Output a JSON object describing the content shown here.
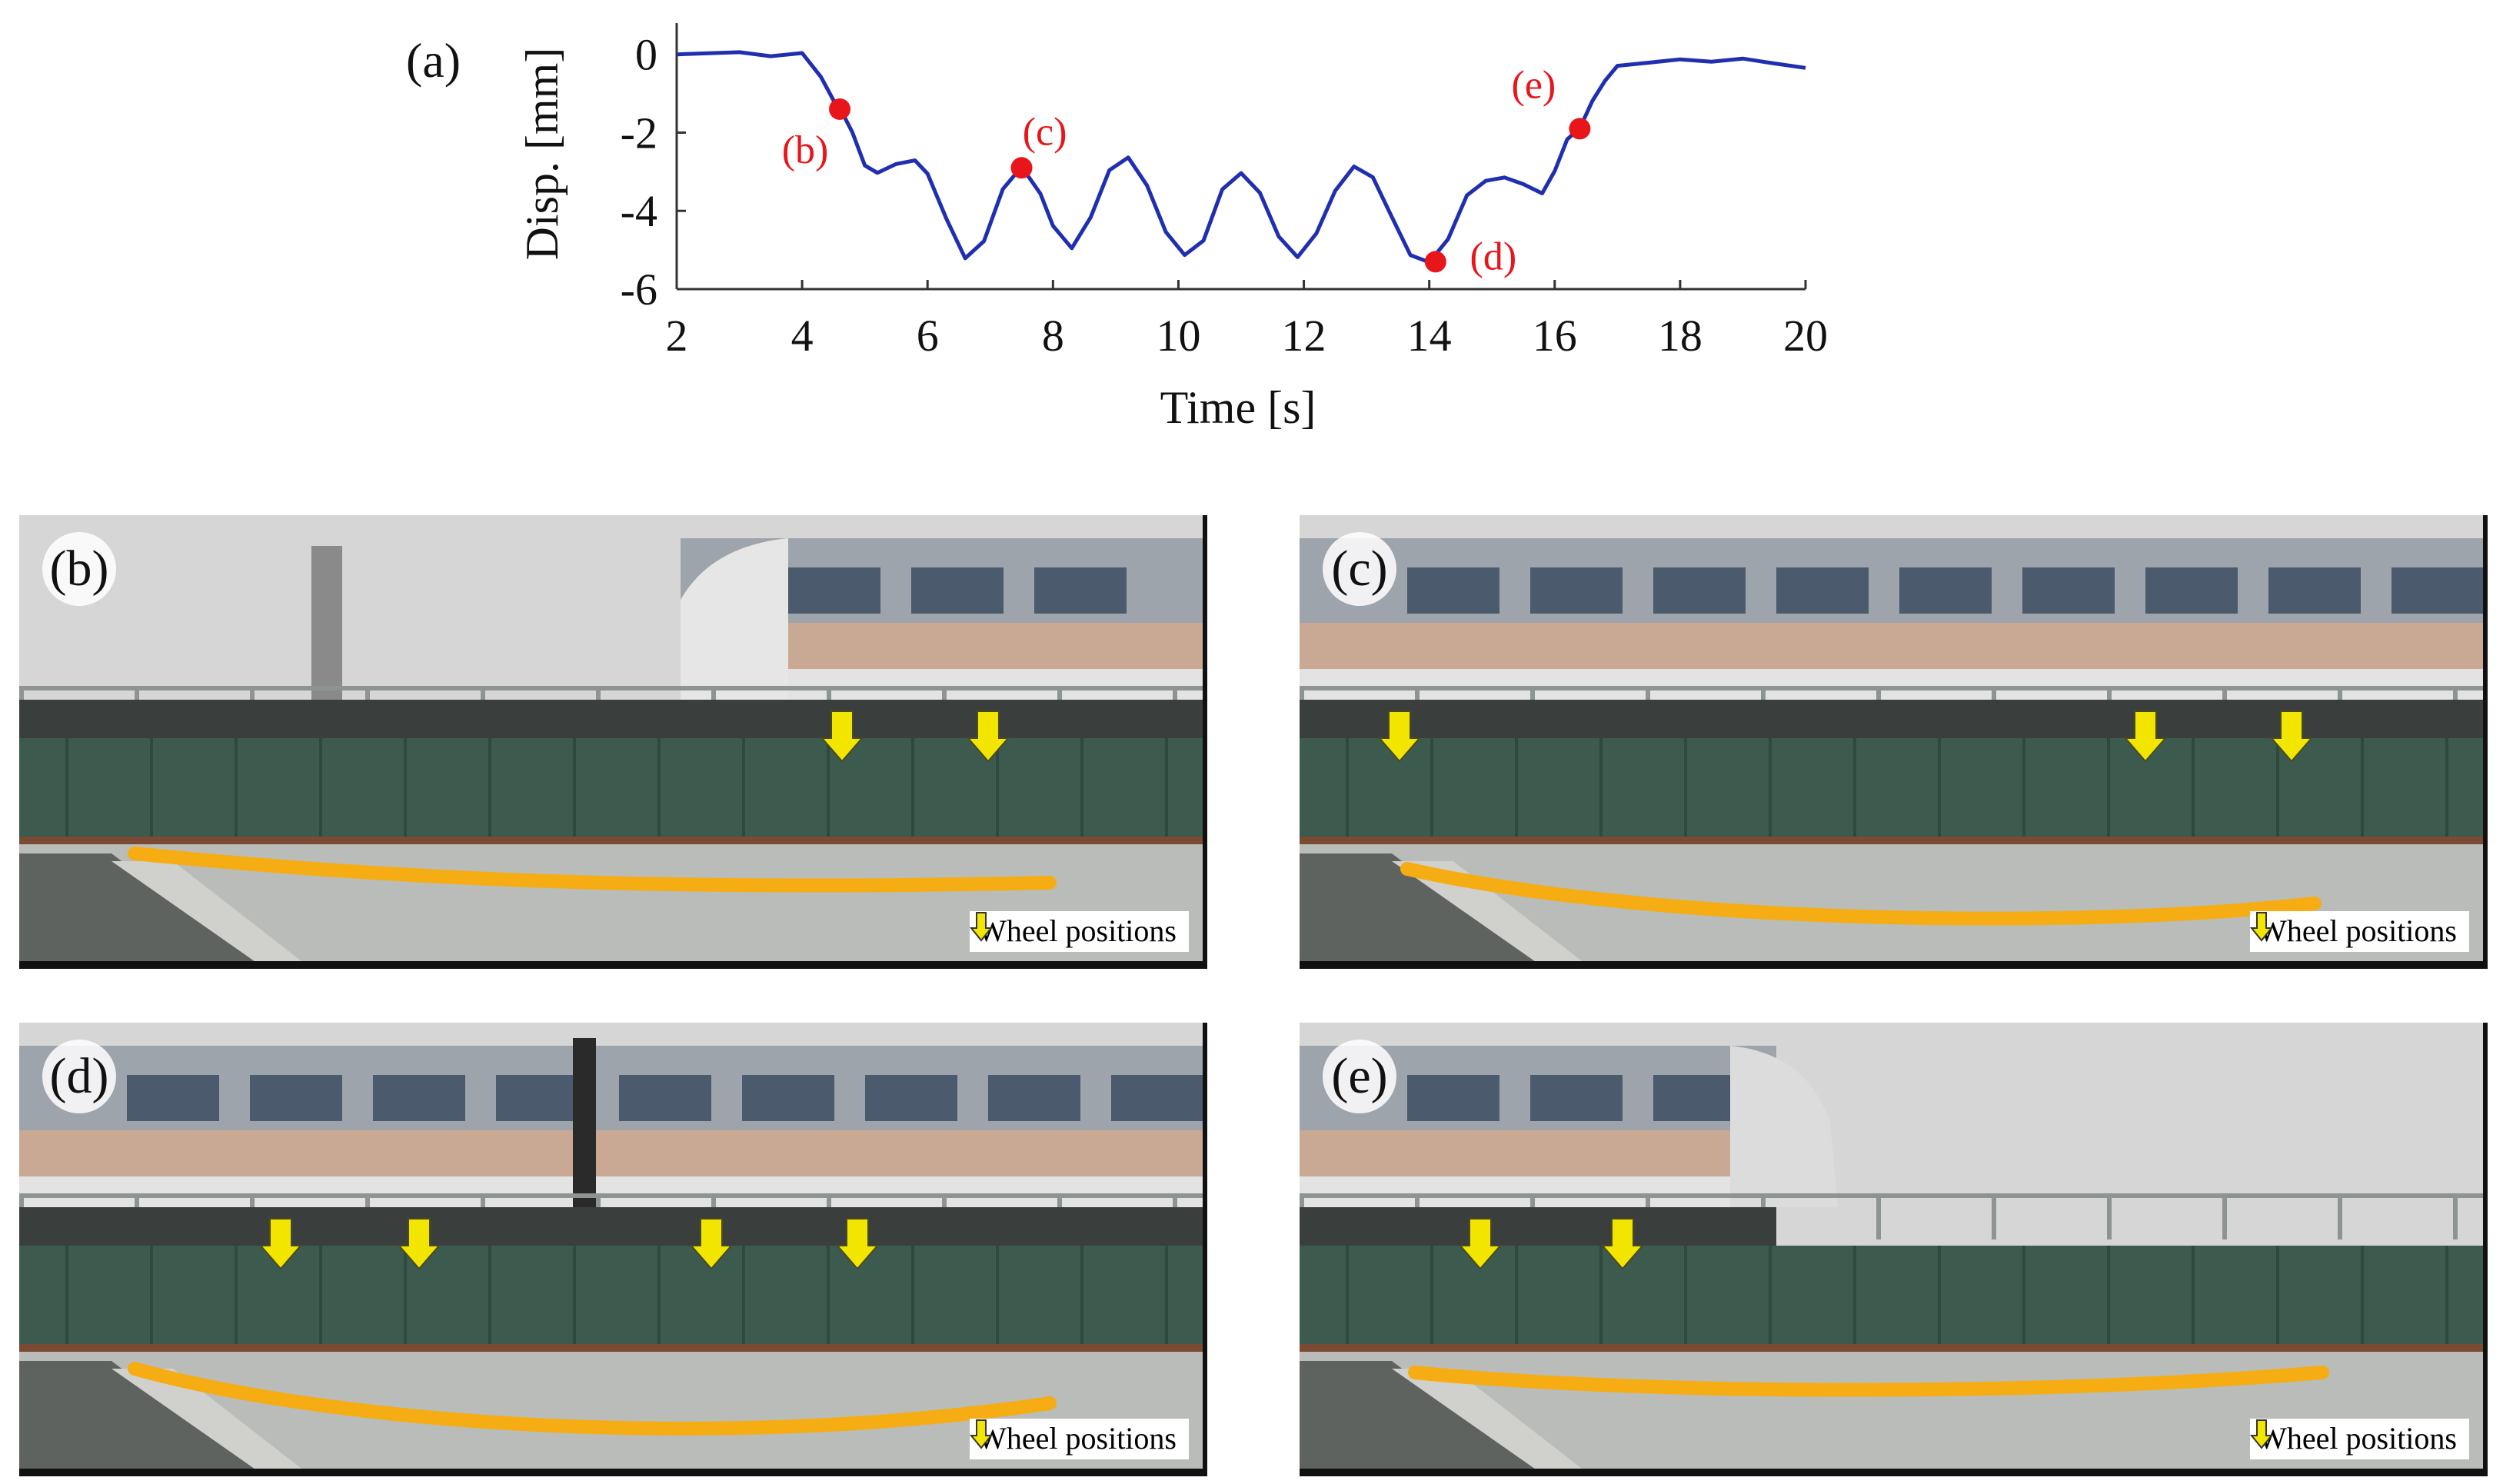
{
  "chart_data": {
    "type": "line",
    "panel_label": "(a)",
    "xlabel": "Time [s]",
    "ylabel": "Disp. [mm]",
    "xlim": [
      2,
      20
    ],
    "ylim": [
      -6,
      0.8
    ],
    "xticks": [
      2,
      4,
      6,
      8,
      10,
      12,
      14,
      16,
      18,
      20
    ],
    "yticks": [
      0,
      -2,
      -4,
      -6
    ],
    "grid": false,
    "series": [
      {
        "color": "#1f2fb0",
        "x": [
          2.0,
          3.0,
          3.5,
          4.0,
          4.3,
          4.5,
          4.6,
          4.8,
          5.0,
          5.2,
          5.5,
          5.8,
          6.0,
          6.3,
          6.6,
          6.9,
          7.2,
          7.5,
          7.8,
          8.0,
          8.3,
          8.6,
          8.9,
          9.2,
          9.5,
          9.8,
          10.1,
          10.4,
          10.7,
          11.0,
          11.3,
          11.6,
          11.9,
          12.2,
          12.5,
          12.8,
          13.1,
          13.4,
          13.7,
          14.0,
          14.3,
          14.6,
          14.9,
          15.2,
          15.5,
          15.8,
          16.0,
          16.2,
          16.4,
          16.6,
          16.8,
          17.0,
          17.5,
          18.0,
          18.5,
          19.0,
          19.5,
          20.0
        ],
        "y": [
          0.0,
          0.0,
          -0.05,
          0.0,
          -0.6,
          -1.2,
          -1.4,
          -2.0,
          -2.8,
          -3.0,
          -2.8,
          -2.7,
          -3.0,
          -4.2,
          -5.2,
          -4.8,
          -3.5,
          -2.9,
          -3.6,
          -4.4,
          -5.0,
          -4.2,
          -3.0,
          -2.6,
          -3.3,
          -4.5,
          -5.1,
          -4.7,
          -3.4,
          -3.0,
          -3.6,
          -4.7,
          -5.2,
          -4.6,
          -3.5,
          -2.9,
          -3.2,
          -4.2,
          -5.1,
          -5.3,
          -4.7,
          -3.6,
          -3.2,
          -3.1,
          -3.3,
          -3.6,
          -3.0,
          -2.2,
          -1.9,
          -1.2,
          -0.7,
          -0.3,
          -0.2,
          -0.1,
          -0.15,
          -0.1,
          -0.2,
          -0.3
        ]
      }
    ],
    "markers": [
      {
        "label": "(b)",
        "x": 4.6,
        "y": -1.4,
        "color": "#e8151b"
      },
      {
        "label": "(c)",
        "x": 7.5,
        "y": -2.9,
        "color": "#e8151b"
      },
      {
        "label": "(d)",
        "x": 14.1,
        "y": -5.3,
        "color": "#e8151b"
      },
      {
        "label": "(e)",
        "x": 16.4,
        "y": -1.9,
        "color": "#e8151b"
      }
    ]
  },
  "panels": [
    {
      "label": "(b)",
      "legend": "Wheel positions",
      "wheel_count": 2
    },
    {
      "label": "(c)",
      "legend": "Wheel positions",
      "wheel_count": 3
    },
    {
      "label": "(d)",
      "legend": "Wheel positions",
      "wheel_count": 4
    },
    {
      "label": "(e)",
      "legend": "Wheel positions",
      "wheel_count": 2
    }
  ],
  "colors": {
    "deflection_line": "#f6ad14",
    "wheel_arrow": "#f2e600",
    "girder": "#3d5a4e",
    "train_stripe": "#c9a994",
    "background": "#d6d6d6"
  }
}
